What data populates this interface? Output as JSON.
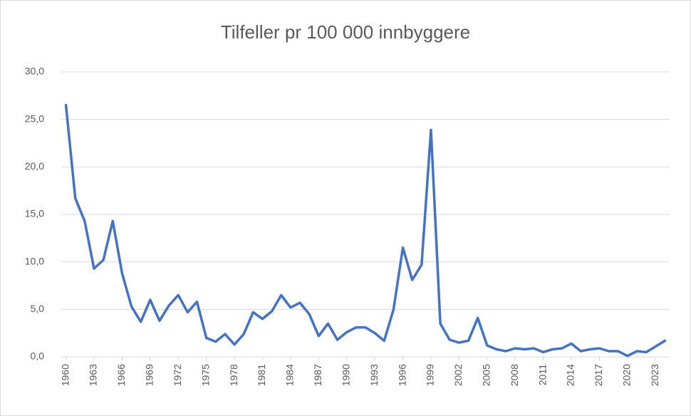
{
  "chart_data": {
    "type": "line",
    "title": "Tilfeller pr 100 000 innbyggere",
    "x": [
      1960,
      1961,
      1962,
      1963,
      1964,
      1965,
      1966,
      1967,
      1968,
      1969,
      1970,
      1971,
      1972,
      1973,
      1974,
      1975,
      1976,
      1977,
      1978,
      1979,
      1980,
      1981,
      1982,
      1983,
      1984,
      1985,
      1986,
      1987,
      1988,
      1989,
      1990,
      1991,
      1992,
      1993,
      1994,
      1995,
      1996,
      1997,
      1998,
      1999,
      2000,
      2001,
      2002,
      2003,
      2004,
      2005,
      2006,
      2007,
      2008,
      2009,
      2010,
      2011,
      2012,
      2013,
      2014,
      2015,
      2016,
      2017,
      2018,
      2019,
      2020,
      2021,
      2022,
      2023,
      2024
    ],
    "series": [
      {
        "color": "#4472c4",
        "values": [
          26.5,
          16.7,
          14.3,
          9.3,
          10.2,
          14.3,
          8.8,
          5.3,
          3.7,
          6.0,
          3.8,
          5.4,
          6.5,
          4.7,
          5.8,
          2.0,
          1.6,
          2.4,
          1.3,
          2.4,
          4.7,
          4.0,
          4.8,
          6.5,
          5.2,
          5.7,
          4.5,
          2.2,
          3.5,
          1.8,
          2.6,
          3.1,
          3.1,
          2.5,
          1.7,
          5.0,
          11.5,
          8.1,
          9.7,
          23.9,
          3.5,
          1.8,
          1.5,
          1.7,
          4.1,
          1.2,
          0.8,
          0.6,
          0.9,
          0.8,
          0.9,
          0.5,
          0.8,
          0.9,
          1.4,
          0.6,
          0.8,
          0.9,
          0.6,
          0.6,
          0.1,
          0.6,
          0.5,
          1.1,
          1.7
        ]
      }
    ],
    "xlim": [
      1959.5,
      2024.5
    ],
    "xticks": [
      1960,
      1963,
      1966,
      1969,
      1972,
      1975,
      1978,
      1981,
      1984,
      1987,
      1990,
      1993,
      1996,
      1999,
      2002,
      2005,
      2008,
      2011,
      2014,
      2017,
      2020,
      2023
    ],
    "ylim": [
      0,
      30
    ],
    "yticks": [
      {
        "value": 0,
        "label": "0,0"
      },
      {
        "value": 5,
        "label": "5,0"
      },
      {
        "value": 10,
        "label": "10,0"
      },
      {
        "value": 15,
        "label": "15,0"
      },
      {
        "value": 20,
        "label": "20,0"
      },
      {
        "value": 25,
        "label": "25,0"
      },
      {
        "value": 30,
        "label": "30,0"
      }
    ],
    "grid": true
  }
}
